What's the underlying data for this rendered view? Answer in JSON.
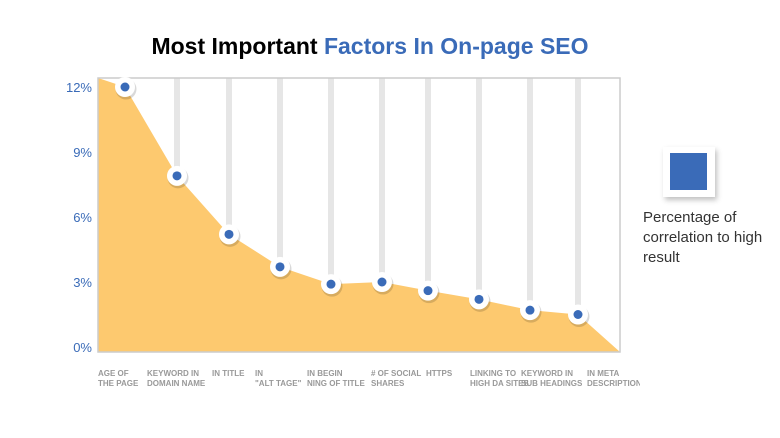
{
  "chart_data": {
    "type": "area",
    "title_part1": "Most Important",
    "title_part2": "Factors In On-page SEO",
    "categories": [
      [
        "AGE OF",
        "THE PAGE"
      ],
      [
        "KEYWORD IN",
        "DOMAIN NAME"
      ],
      [
        "IN TITLE",
        ""
      ],
      [
        "IN",
        "\"ALT TAGE\""
      ],
      [
        "IN BEGIN",
        "NING OF TITLE"
      ],
      [
        "# OF SOCIAL",
        " SHARES"
      ],
      [
        "HTTPS",
        ""
      ],
      [
        "LINKING TO",
        "HIGH DA SITES"
      ],
      [
        "KEYWORD IN",
        "SUB HEADINGS"
      ],
      [
        "IN META",
        "DESCRIPTION"
      ]
    ],
    "series": [
      {
        "name": "Percentage of correlation to high result",
        "values": [
          12,
          7.9,
          5.2,
          3.7,
          2.9,
          3.0,
          2.6,
          2.2,
          1.7,
          1.5
        ]
      }
    ],
    "yticks": [
      "0%",
      "3%",
      "6%",
      "9%",
      "12%"
    ],
    "ylim": [
      0,
      12
    ],
    "grid": false,
    "legend": "right",
    "legend_label": "Percentage of correlation to high result",
    "colors": {
      "area": "#fdc96f",
      "point": "#3a6bb8",
      "stem": "#e6e6e6",
      "axis_text": "#3a6bb8",
      "frame": "#cccccc"
    }
  }
}
